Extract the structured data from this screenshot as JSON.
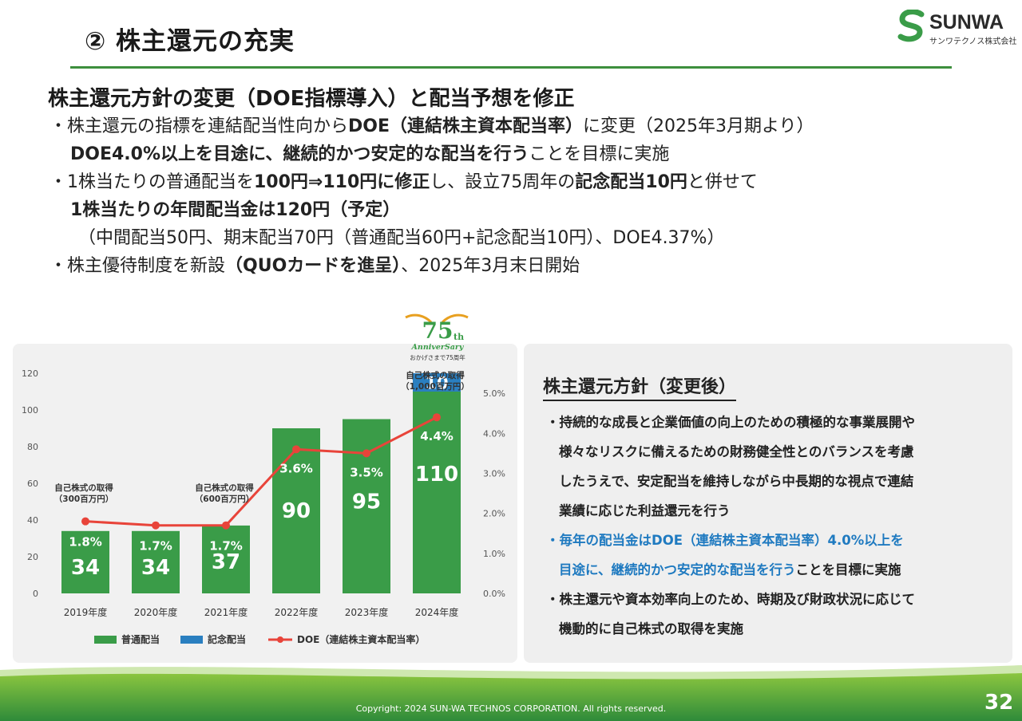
{
  "header": {
    "title": "② 株主還元の充実",
    "logo_name": "SUNWA",
    "logo_sub": "サンワテクノス株式会社"
  },
  "main": {
    "heading": "株主還元方針の変更（DOE指標導入）と配当予想を修正",
    "line1_a": "・株主還元の指標を連結配当性向から",
    "line1_b": "DOE（連結株主資本配当率）",
    "line1_c": "に変更（2025年3月期より）",
    "line2_a": "DOE4.0%以上を目途に、継続的かつ安定的な配当を行う",
    "line2_b": "ことを目標に実施",
    "line3_a": "・1株当たりの普通配当を",
    "line3_b": "100円⇒110円に修正",
    "line3_c": "し、設立75周年の",
    "line3_d": "記念配当10円",
    "line3_e": "と併せて",
    "line4": "1株当たりの年間配当金は120円（予定）",
    "line5": "（中間配当50円、期末配当70円（普通配当60円+記念配当10円）、DOE4.37%）",
    "line6_a": "・株主優待制度を新設",
    "line6_b": "（QUOカードを進呈）",
    "line6_c": "、2025年3月末日開始"
  },
  "anniversary": {
    "number": "75",
    "suffix": "th",
    "word": "AnniverSary",
    "sub": "おかげさまで75周年"
  },
  "chart_data": {
    "type": "bar",
    "categories": [
      "2019年度",
      "2020年度",
      "2021年度",
      "2022年度",
      "2023年度",
      "2024年度"
    ],
    "series": [
      {
        "name": "普通配当",
        "values": [
          34,
          34,
          37,
          90,
          95,
          110
        ],
        "color": "#3a9c48"
      },
      {
        "name": "記念配当",
        "values": [
          0,
          0,
          0,
          0,
          0,
          10
        ],
        "color": "#2a7fc0"
      },
      {
        "name": "DOE（連結株主資本配当率）",
        "type": "line",
        "axis": "right",
        "values": [
          1.8,
          1.7,
          1.7,
          3.6,
          3.5,
          4.4
        ],
        "labels": [
          "1.8%",
          "1.7%",
          "1.7%",
          "3.6%",
          "3.5%",
          "4.4%"
        ],
        "color": "#e8443a"
      }
    ],
    "y_left": {
      "ticks": [
        "0",
        "20",
        "40",
        "60",
        "80",
        "100",
        "120"
      ],
      "ylim": [
        0,
        120
      ]
    },
    "y_right": {
      "ticks": [
        "0.0%",
        "1.0%",
        "2.0%",
        "3.0%",
        "4.0%",
        "5.0%"
      ],
      "ylim": [
        0,
        5.5
      ]
    },
    "annotations": [
      {
        "category": "2019年度",
        "lines": [
          "自己株式の取得",
          "（300百万円）"
        ]
      },
      {
        "category": "2021年度",
        "lines": [
          "自己株式の取得",
          "（600百万円）"
        ]
      },
      {
        "category": "2024年度",
        "lines": [
          "自己株式の取得",
          "（1,000百万円）"
        ]
      }
    ],
    "legend_position": "bottom"
  },
  "policy": {
    "title": "株主還元方針（変更後）",
    "p1": [
      "・持続的な成長と企業価値の向上のための積極的な事業展開や",
      "様々なリスクに備えるための財務健全性とのバランスを考慮",
      "したうえで、安定配当を維持しながら中長期的な視点で連結",
      "業績に応じた利益還元を行う"
    ],
    "p2_a": "・毎年の配当金はDOE（連結株主資本配当率）4.0%以上を",
    "p2_b": "目途に、継続的かつ安定的な配当を行う",
    "p2_c": "ことを目標に実施",
    "p3": [
      "・株主還元や資本効率向上のため、時期及び財政状況に応じて",
      "機動的に自己株式の取得を実施"
    ]
  },
  "footer": {
    "copyright": "Copyright: 2024 SUN-WA TECHNOS CORPORATION. All rights reserved.",
    "page": "32"
  },
  "colors": {
    "accent_green": "#3d8f3d",
    "bar_green": "#3a9c48",
    "bar_blue": "#2a7fc0",
    "line_red": "#e8443a",
    "highlight_blue": "#1f7ac0"
  }
}
